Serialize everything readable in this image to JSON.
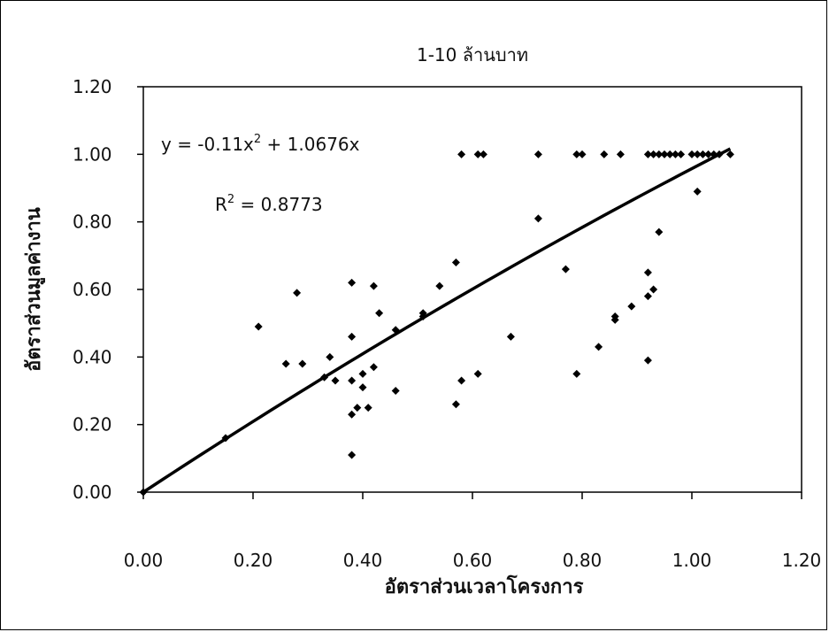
{
  "chart_data": {
    "type": "scatter",
    "title": "1-10 ล้านบาท",
    "xlabel": "อัตราส่วนเวลาโครงการ",
    "ylabel": "อัตราส่วนมูลค่างาน",
    "xlim": [
      0,
      1.2
    ],
    "ylim": [
      0,
      1.2
    ],
    "xticks": [
      "0.00",
      "0.20",
      "0.40",
      "0.60",
      "0.80",
      "1.00",
      "1.20"
    ],
    "yticks": [
      "0.00",
      "0.20",
      "0.40",
      "0.60",
      "0.80",
      "1.00",
      "1.20"
    ],
    "grid": false,
    "legend": "none",
    "marker": "diamond",
    "marker_color": "#000000",
    "points": [
      [
        0.0,
        0.0
      ],
      [
        0.15,
        0.16
      ],
      [
        0.21,
        0.49
      ],
      [
        0.26,
        0.38
      ],
      [
        0.28,
        0.59
      ],
      [
        0.29,
        0.38
      ],
      [
        0.33,
        0.34
      ],
      [
        0.34,
        0.4
      ],
      [
        0.35,
        0.33
      ],
      [
        0.38,
        0.62
      ],
      [
        0.38,
        0.46
      ],
      [
        0.38,
        0.33
      ],
      [
        0.38,
        0.23
      ],
      [
        0.38,
        0.11
      ],
      [
        0.39,
        0.25
      ],
      [
        0.4,
        0.35
      ],
      [
        0.4,
        0.31
      ],
      [
        0.41,
        0.25
      ],
      [
        0.42,
        0.61
      ],
      [
        0.42,
        0.37
      ],
      [
        0.43,
        0.53
      ],
      [
        0.46,
        0.48
      ],
      [
        0.46,
        0.3
      ],
      [
        0.51,
        0.52
      ],
      [
        0.51,
        0.53
      ],
      [
        0.54,
        0.61
      ],
      [
        0.57,
        0.68
      ],
      [
        0.57,
        0.26
      ],
      [
        0.58,
        0.33
      ],
      [
        0.58,
        1.0
      ],
      [
        0.61,
        0.35
      ],
      [
        0.61,
        1.0
      ],
      [
        0.62,
        1.0
      ],
      [
        0.67,
        0.46
      ],
      [
        0.72,
        0.81
      ],
      [
        0.72,
        1.0
      ],
      [
        0.77,
        0.66
      ],
      [
        0.79,
        0.35
      ],
      [
        0.79,
        1.0
      ],
      [
        0.8,
        1.0
      ],
      [
        0.83,
        0.43
      ],
      [
        0.84,
        1.0
      ],
      [
        0.86,
        0.51
      ],
      [
        0.86,
        0.52
      ],
      [
        0.87,
        1.0
      ],
      [
        0.89,
        0.55
      ],
      [
        0.92,
        0.39
      ],
      [
        0.92,
        0.58
      ],
      [
        0.92,
        0.65
      ],
      [
        0.92,
        1.0
      ],
      [
        0.93,
        0.6
      ],
      [
        0.93,
        1.0
      ],
      [
        0.94,
        0.77
      ],
      [
        0.94,
        1.0
      ],
      [
        0.95,
        1.0
      ],
      [
        0.96,
        1.0
      ],
      [
        0.97,
        1.0
      ],
      [
        0.98,
        1.0
      ],
      [
        1.0,
        1.0
      ],
      [
        1.01,
        0.89
      ],
      [
        1.01,
        1.0
      ],
      [
        1.02,
        1.0
      ],
      [
        1.03,
        1.0
      ],
      [
        1.04,
        1.0
      ],
      [
        1.05,
        1.0
      ],
      [
        1.07,
        1.0
      ]
    ],
    "trendline": {
      "type": "polynomial",
      "order": 2,
      "a": -0.11,
      "b": 1.0676,
      "c": 0,
      "x_range": [
        0,
        1.07
      ],
      "color": "#000000",
      "equation_prefix": "y = -0.11x",
      "equation_exp": "2",
      "equation_suffix": " + 1.0676x",
      "r2_prefix": "R",
      "r2_exp": "2",
      "r2_suffix": " = 0.8773"
    }
  }
}
